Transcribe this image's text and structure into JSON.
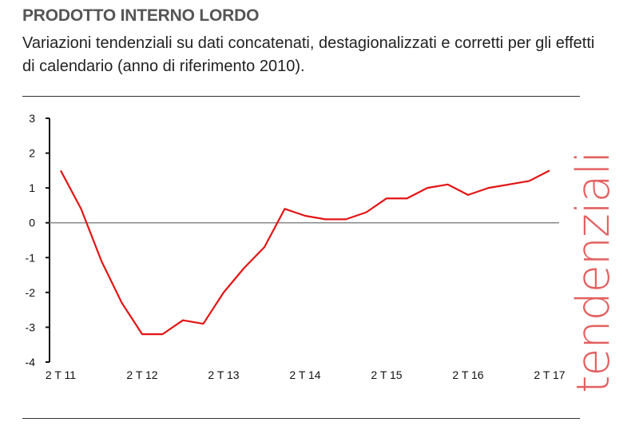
{
  "header": {
    "title": "PRODOTTO INTERNO LORDO",
    "subtitle": "Variazioni tendenziali su dati concatenati, destagionalizzati e corretti per gli effetti di calendario (anno di riferimento 2010)."
  },
  "side_label": "tendenziali",
  "chart_data": {
    "type": "line",
    "title": "",
    "xlabel": "",
    "ylabel": "",
    "ylim": [
      -4,
      3
    ],
    "yticks": [
      "3",
      "2",
      "1",
      "0",
      "-1",
      "-2",
      "-3",
      "-4"
    ],
    "x_tick_labels": [
      "2 T 11",
      "2 T 12",
      "2 T 13",
      "2 T 14",
      "2 T 15",
      "2 T 16",
      "2 T 17"
    ],
    "x": [
      "2T11",
      "3T11",
      "4T11",
      "1T12",
      "2T12",
      "3T12",
      "4T12",
      "1T13",
      "2T13",
      "3T13",
      "4T13",
      "1T14",
      "2T14",
      "3T14",
      "4T14",
      "1T15",
      "2T15",
      "3T15",
      "4T15",
      "1T16",
      "2T16",
      "3T16",
      "4T16",
      "1T17",
      "2T17"
    ],
    "series": [
      {
        "values": [
          1.5,
          0.4,
          -1.1,
          -2.3,
          -3.2,
          -3.2,
          -2.8,
          -2.9,
          -2.0,
          -1.3,
          -0.7,
          0.4,
          0.2,
          0.1,
          0.1,
          0.3,
          0.7,
          0.7,
          1.0,
          1.1,
          0.8,
          1.0,
          1.1,
          1.2,
          1.5
        ],
        "color": "#e31414"
      }
    ],
    "zero_line_color": "#888888",
    "grid": false,
    "legend": "none"
  }
}
